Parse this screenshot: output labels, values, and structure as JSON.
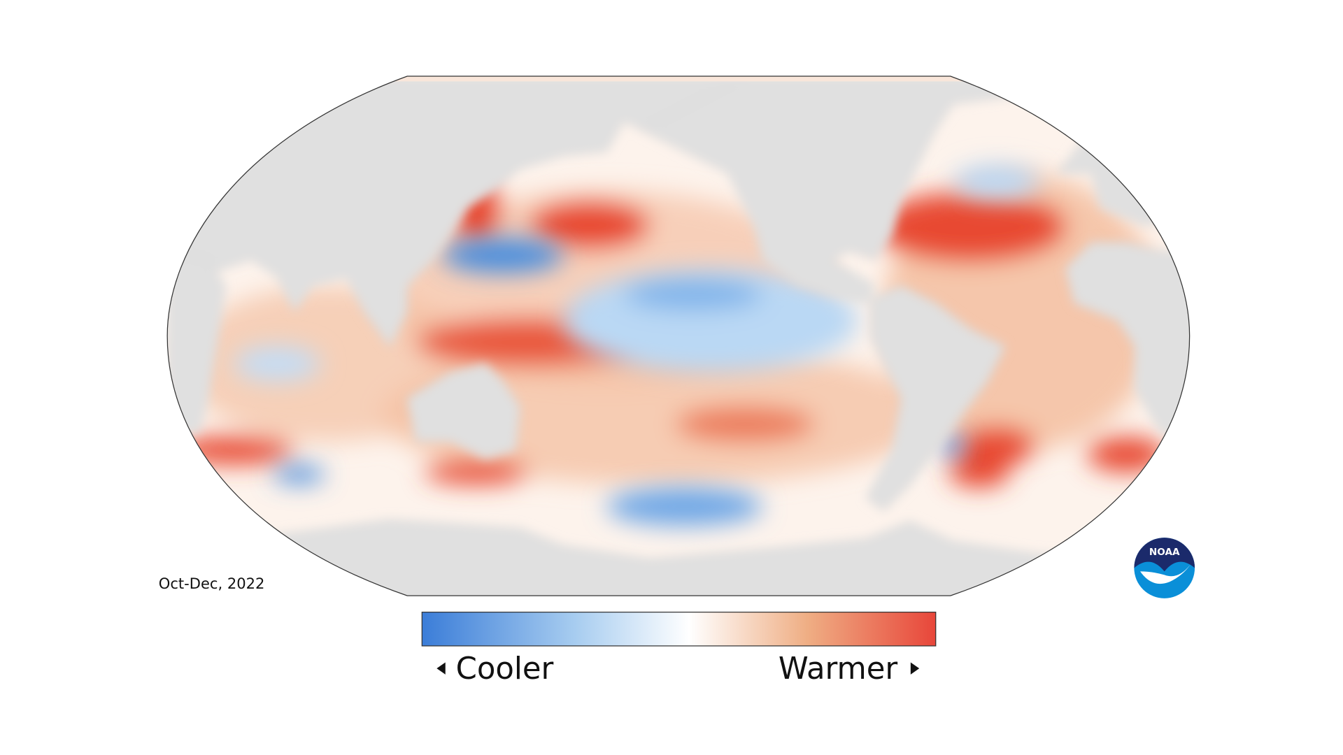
{
  "map": {
    "period": "Oct-Dec, 2022"
  },
  "legend": {
    "low": "Cooler",
    "high": "Warmer"
  },
  "logo": {
    "text": "NOAA"
  }
}
